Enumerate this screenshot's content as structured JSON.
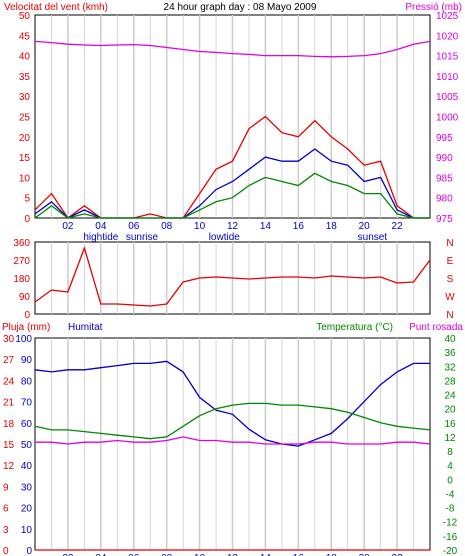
{
  "colors": {
    "red": "#e60000",
    "magenta": "#e000e0",
    "blue": "#0000c8",
    "green": "#008800",
    "grid": "#cccccc",
    "frame": "#000000",
    "background": "#ffffff"
  },
  "x_ticks": [
    "02",
    "04",
    "06",
    "08",
    "10",
    "12",
    "14",
    "16",
    "18",
    "20",
    "22"
  ],
  "x_markers": [
    "hightide",
    "sunrise",
    "lowtide",
    "sunset"
  ],
  "chart_data": [
    {
      "type": "line",
      "title": "24 hour graph day : 08 Mayo 2009",
      "ylabel": "Velocitat del vent (kmh)",
      "y2label": "Pressió (mb)",
      "ylim": [
        0,
        50
      ],
      "y2lim": [
        975,
        1025
      ],
      "yticks": [
        "0",
        "5",
        "10",
        "15",
        "20",
        "25",
        "30",
        "35",
        "40",
        "45",
        "50"
      ],
      "y2ticks": [
        "975",
        "980",
        "985",
        "990",
        "995",
        "1000",
        "1005",
        "1010",
        "1015",
        "1020",
        "1025"
      ],
      "x": [
        0,
        1,
        2,
        3,
        4,
        5,
        6,
        7,
        8,
        9,
        10,
        11,
        12,
        13,
        14,
        15,
        16,
        17,
        18,
        19,
        20,
        21,
        22,
        23,
        24
      ],
      "series": [
        {
          "role": "gust",
          "color": "red",
          "axis": "left",
          "values": [
            2,
            6,
            0,
            3,
            0,
            0,
            0,
            1,
            0,
            0,
            6,
            12,
            14,
            22,
            25,
            21,
            20,
            24,
            20,
            17,
            13,
            14,
            3,
            0,
            0
          ]
        },
        {
          "role": "average",
          "color": "blue",
          "axis": "left",
          "values": [
            1,
            4,
            0,
            2,
            0,
            0,
            0,
            0,
            0,
            0,
            3,
            7,
            9,
            12,
            15,
            14,
            14,
            17,
            14,
            13,
            9,
            10,
            2,
            0,
            0
          ]
        },
        {
          "role": "speed",
          "color": "green",
          "axis": "left",
          "values": [
            0,
            3,
            0,
            1,
            0,
            0,
            0,
            0,
            0,
            0,
            2,
            4,
            5,
            8,
            10,
            9,
            8,
            11,
            9,
            8,
            6,
            6,
            1,
            0,
            0
          ]
        },
        {
          "role": "pressure",
          "color": "magenta",
          "axis": "right",
          "values": [
            1018.5,
            1018.2,
            1017.8,
            1017.6,
            1017.5,
            1017.6,
            1017.7,
            1017.5,
            1017.0,
            1016.5,
            1016.0,
            1015.8,
            1015.5,
            1015.3,
            1015.0,
            1015.0,
            1015.0,
            1014.8,
            1014.7,
            1014.8,
            1015.0,
            1015.5,
            1016.5,
            1017.8,
            1018.5
          ]
        }
      ]
    },
    {
      "type": "line",
      "yticks": [
        "0",
        "90",
        "180",
        "270",
        "360"
      ],
      "y2ticks": [
        "N",
        "W",
        "S",
        "E",
        "N"
      ],
      "ylim": [
        0,
        360
      ],
      "x": [
        0,
        1,
        2,
        3,
        4,
        5,
        6,
        7,
        8,
        9,
        10,
        11,
        12,
        13,
        14,
        15,
        16,
        17,
        18,
        19,
        20,
        21,
        22,
        23,
        24
      ],
      "series": [
        {
          "role": "wind-direction",
          "color": "red",
          "values": [
            60,
            120,
            110,
            330,
            50,
            50,
            45,
            40,
            50,
            160,
            180,
            185,
            180,
            175,
            180,
            185,
            185,
            180,
            190,
            185,
            180,
            185,
            155,
            160,
            270
          ]
        }
      ]
    },
    {
      "type": "line",
      "ylabel": "Pluja (mm)",
      "ylabel2": "Humitat",
      "y2label": "Temperatura (°C)",
      "y3label": "Punt rosada",
      "y_rain_ticks": [
        "0",
        "3",
        "6",
        "9",
        "12",
        "15",
        "18",
        "21",
        "24",
        "27",
        "30"
      ],
      "y_hum_ticks": [
        "0",
        "10",
        "20",
        "30",
        "40",
        "50",
        "60",
        "70",
        "80",
        "90",
        "100"
      ],
      "y_temp_ticks": [
        "-20",
        "-16",
        "-12",
        "-8",
        "-4",
        "0",
        "4",
        "8",
        "12",
        "16",
        "20",
        "24",
        "28",
        "32",
        "36",
        "40"
      ],
      "x": [
        0,
        1,
        2,
        3,
        4,
        5,
        6,
        7,
        8,
        9,
        10,
        11,
        12,
        13,
        14,
        15,
        16,
        17,
        18,
        19,
        20,
        21,
        22,
        23,
        24
      ],
      "series": [
        {
          "role": "humidity",
          "color": "blue",
          "axis": "hum",
          "values": [
            85,
            84,
            85,
            85,
            86,
            87,
            88,
            88,
            89,
            84,
            72,
            66,
            64,
            57,
            52,
            50,
            49,
            52,
            55,
            62,
            70,
            78,
            84,
            88,
            88
          ]
        },
        {
          "role": "temperature",
          "color": "green",
          "axis": "temp",
          "values": [
            15,
            14,
            14,
            13.5,
            13,
            12.5,
            12,
            11.5,
            12,
            15,
            18,
            20,
            21,
            21.5,
            21.5,
            21,
            21,
            20.5,
            20,
            19,
            17.5,
            16,
            15,
            14.5,
            14
          ]
        },
        {
          "role": "dewpoint",
          "color": "magenta",
          "axis": "temp",
          "values": [
            10.5,
            10.5,
            10,
            10.5,
            10.5,
            11,
            10.5,
            10.5,
            11,
            12,
            11,
            11,
            10.5,
            10.5,
            10,
            10,
            10,
            10.5,
            10.5,
            10,
            10,
            10,
            10.5,
            10.5,
            10
          ]
        },
        {
          "role": "rain",
          "color": "red",
          "axis": "rain",
          "values": [
            0,
            0,
            0,
            0,
            0,
            0,
            0,
            0,
            0,
            0,
            0,
            0,
            0,
            0,
            0,
            0,
            0,
            0,
            0,
            0,
            0,
            0,
            0,
            0,
            0
          ]
        }
      ]
    }
  ]
}
